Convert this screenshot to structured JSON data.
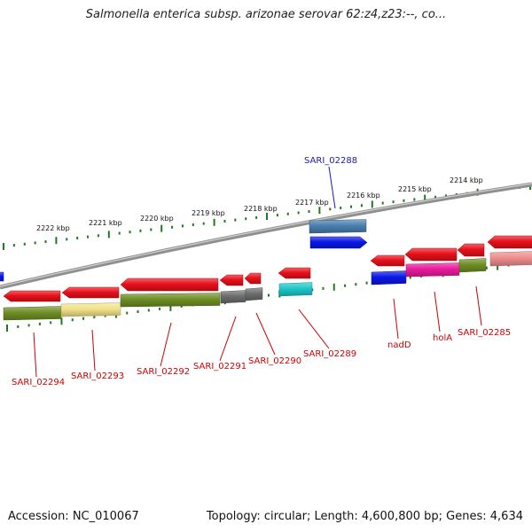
{
  "title": "Salmonella enterica subsp. arizonae serovar 62:z4,z23:--, co...",
  "footer": {
    "accession": "Accession: NC_010067",
    "topology": "Topology: circular; Length: 4,600,800 bp; Genes: 4,634"
  },
  "ruler_labels": [
    "2222 kbp",
    "2221 kbp",
    "2220 kbp",
    "2219 kbp",
    "2218 kbp",
    "2217 kbp",
    "2216 kbp",
    "2215 kbp",
    "2214 kbp"
  ],
  "gene_labels": {
    "SARI_02288": "SARI_02288",
    "SARI_02294": "SARI_02294",
    "SARI_02293": "SARI_02293",
    "SARI_02292": "SARI_02292",
    "SARI_02291": "SARI_02291",
    "SARI_02290": "SARI_02290",
    "SARI_02289": "SARI_02289",
    "nadD": "nadD",
    "holA": "holA",
    "SARI_02285": "SARI_02285"
  },
  "colors": {
    "backbone": "#8f8f8f",
    "tick": "#1e7a1e",
    "gene_red": "#e8101a",
    "olive": "#6f8e24",
    "pale_yellow": "#f2e38a",
    "gray": "#6d6d6d",
    "cyan": "#1dc7c9",
    "steel_blue": "#4a7fb0",
    "blue": "#0a18e6",
    "magenta": "#ea1a9c",
    "pink": "#ef8d8d",
    "label_red": "#cc0000",
    "label_blue": "#1a1aaa"
  }
}
